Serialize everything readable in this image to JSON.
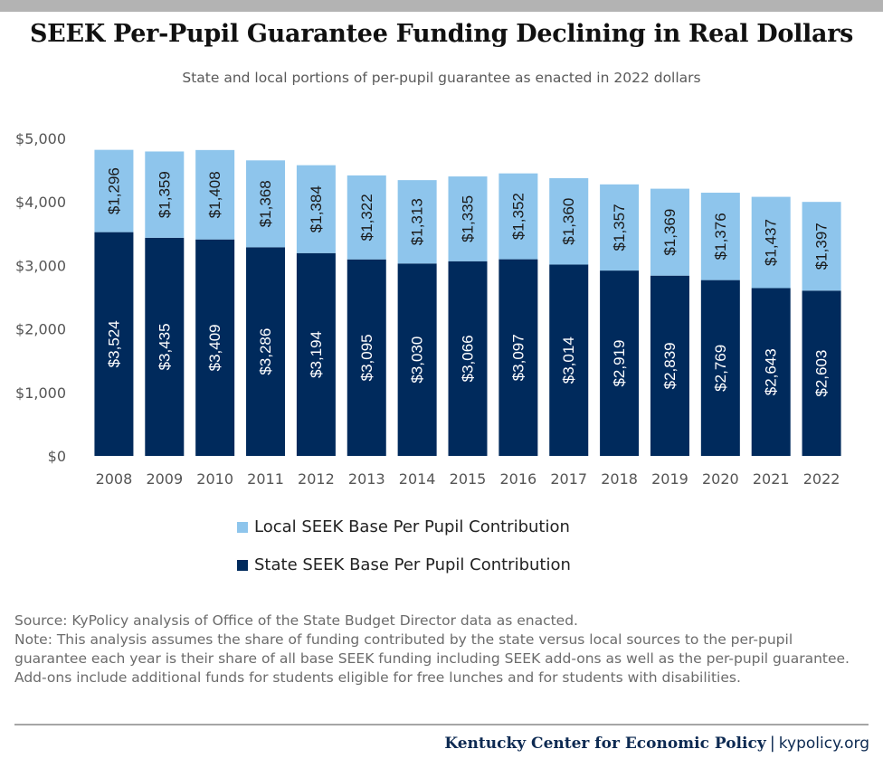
{
  "title": "SEEK Per-Pupil Guarantee Funding Declining in Real Dollars",
  "subtitle": "State and local portions of per-pupil guarantee as enacted in 2022 dollars",
  "colors": {
    "local": "#8ec5ec",
    "state": "#002a5c",
    "axis_text": "#555555",
    "top_bar": "#b3b3b3",
    "footer": "#0d2a52"
  },
  "chart_data": {
    "type": "bar",
    "stacked": true,
    "categories": [
      "2008",
      "2009",
      "2010",
      "2011",
      "2012",
      "2013",
      "2014",
      "2015",
      "2016",
      "2017",
      "2018",
      "2019",
      "2020",
      "2021",
      "2022"
    ],
    "series": [
      {
        "name": "State SEEK Base Per Pupil Contribution",
        "values": [
          3524,
          3435,
          3409,
          3286,
          3194,
          3095,
          3030,
          3066,
          3097,
          3014,
          2919,
          2839,
          2769,
          2643,
          2603
        ]
      },
      {
        "name": "Local SEEK Base Per Pupil Contribution",
        "values": [
          1296,
          1359,
          1408,
          1368,
          1384,
          1322,
          1313,
          1335,
          1352,
          1360,
          1357,
          1369,
          1376,
          1437,
          1397
        ]
      }
    ],
    "ylim": [
      0,
      5000
    ],
    "yticks": [
      0,
      1000,
      2000,
      3000,
      4000,
      5000
    ],
    "ytick_labels": [
      "$0",
      "$1,000",
      "$2,000",
      "$3,000",
      "$4,000",
      "$5,000"
    ],
    "data_labels_state": [
      "$3,524",
      "$3,435",
      "$3,409",
      "$3,286",
      "$3,194",
      "$3,095",
      "$3,030",
      "$3,066",
      "$3,097",
      "$3,014",
      "$2,919",
      "$2,839",
      "$2,769",
      "$2,643",
      "$2,603"
    ],
    "data_labels_local": [
      "$1,296",
      "$1,359",
      "$1,408",
      "$1,368",
      "$1,384",
      "$1,322",
      "$1,313",
      "$1,335",
      "$1,352",
      "$1,360",
      "$1,357",
      "$1,369",
      "$1,376",
      "$1,437",
      "$1,397"
    ],
    "grid": false,
    "legend_position": "bottom"
  },
  "legend": {
    "local_label": "Local SEEK Base Per Pupil Contribution",
    "state_label": "State SEEK Base Per Pupil Contribution"
  },
  "notes": {
    "source": "Source: KyPolicy analysis of Office of the State Budget Director data as enacted.",
    "note": "Note: This analysis assumes the share of funding contributed by the state versus local sources to the per-pupil guarantee each year is their share of all base SEEK funding including SEEK add-ons as well as the per-pupil guarantee. Add-ons include additional funds for students eligible for free lunches and for students with disabilities."
  },
  "footer": {
    "org": "Kentucky Center for Economic Policy",
    "separator": "|",
    "site": "kypolicy.org"
  }
}
